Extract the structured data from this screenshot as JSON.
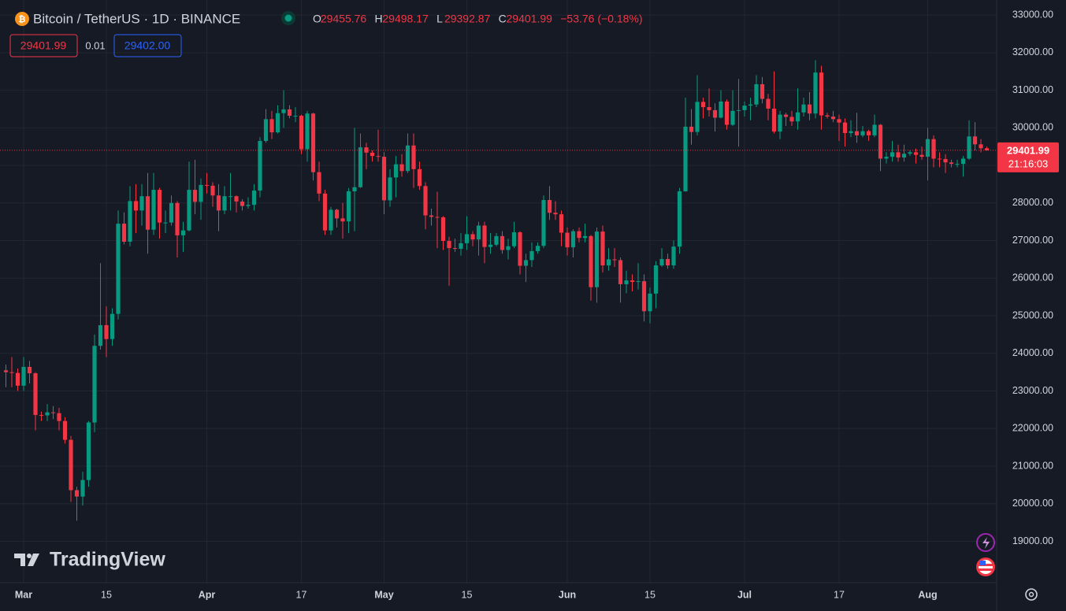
{
  "chart_data": {
    "type": "candlestick",
    "title": "Bitcoin / TetherUS · 1D · BINANCE",
    "ohlc_labels": {
      "open": "O",
      "high": "H",
      "low": "L",
      "close": "C"
    },
    "change": "−53.76 (−0.18%)",
    "bid_ask": {
      "spread": "0.01",
      "ask": "29402.00"
    },
    "countdown": "21:16:03",
    "brand": "TradingView",
    "up_color": "#089981",
    "down_color": "#f23645",
    "ylim": [
      17900,
      33400
    ],
    "yticks": [
      {
        "value": 19000,
        "label": "19000.00"
      },
      {
        "value": 20000,
        "label": "20000.00"
      },
      {
        "value": 21000,
        "label": "21000.00"
      },
      {
        "value": 22000,
        "label": "22000.00"
      },
      {
        "value": 23000,
        "label": "23000.00"
      },
      {
        "value": 24000,
        "label": "24000.00"
      },
      {
        "value": 25000,
        "label": "25000.00"
      },
      {
        "value": 26000,
        "label": "26000.00"
      },
      {
        "value": 27000,
        "label": "27000.00"
      },
      {
        "value": 28000,
        "label": "28000.00"
      },
      {
        "value": 29000,
        "label": "29000.00"
      },
      {
        "value": 30000,
        "label": "30000.00"
      },
      {
        "value": 31000,
        "label": "31000.00"
      },
      {
        "value": 32000,
        "label": "32000.00"
      },
      {
        "value": 33000,
        "label": "33000.00"
      }
    ],
    "categories": [
      null,
      null,
      null,
      "Mar",
      null,
      null,
      null,
      null,
      null,
      null,
      null,
      null,
      null,
      null,
      null,
      null,
      null,
      "15",
      null,
      null,
      null,
      null,
      null,
      null,
      null,
      null,
      null,
      null,
      null,
      null,
      null,
      null,
      null,
      null,
      "Apr",
      null,
      null,
      null,
      null,
      null,
      null,
      null,
      null,
      null,
      null,
      null,
      null,
      null,
      null,
      null,
      "17",
      null,
      null,
      null,
      null,
      null,
      null,
      null,
      null,
      null,
      null,
      null,
      null,
      null,
      "May",
      null,
      null,
      null,
      null,
      null,
      null,
      null,
      null,
      null,
      null,
      null,
      null,
      null,
      "15",
      null,
      null,
      null,
      null,
      null,
      null,
      null,
      null,
      null,
      null,
      null,
      null,
      null,
      null,
      null,
      null,
      "Jun",
      null,
      null,
      null,
      null,
      null,
      null,
      null,
      null,
      null,
      null,
      null,
      null,
      null,
      "15",
      null,
      null,
      null,
      null,
      null,
      null,
      null,
      null,
      null,
      null,
      null,
      null,
      null,
      null,
      null,
      "Jul",
      null,
      null,
      null,
      null,
      null,
      null,
      null,
      null,
      null,
      null,
      null,
      null,
      null,
      null,
      null,
      "17",
      null,
      null,
      null,
      null,
      null,
      null,
      null,
      null,
      null,
      null,
      null,
      null,
      null,
      null,
      "Aug",
      null,
      null,
      null,
      null,
      null,
      null,
      null,
      null,
      null,
      null
    ],
    "open": [
      23550,
      23500,
      23480,
      23140,
      23640,
      23470,
      22360,
      22350,
      22430,
      22410,
      22200,
      21700,
      20360,
      20190,
      20630,
      22160,
      24200,
      24750,
      24380,
      25050,
      27450,
      26970,
      28050,
      27800,
      28180,
      27290,
      28350,
      27480,
      27480,
      28000,
      27140,
      27270,
      28350,
      28030,
      28480,
      28460,
      28200,
      27800,
      28180,
      28180,
      28040,
      27920,
      27950,
      28330,
      29650,
      30230,
      29880,
      30390,
      30490,
      30320,
      30320,
      29430,
      30380,
      28820,
      28250,
      27270,
      27820,
      27590,
      27510,
      28310,
      28420,
      29480,
      29340,
      29250,
      29230,
      28070,
      28680,
      29030,
      28850,
      29530,
      28900,
      28450,
      27670,
      27630,
      27620,
      26990,
      26800,
      26780,
      26930,
      27170,
      27030,
      27400,
      26830,
      26890,
      27120,
      26750,
      26850,
      27220,
      26330,
      26480,
      26720,
      26860,
      28080,
      27740,
      27700,
      27210,
      26820,
      27250,
      27070,
      27120,
      25760,
      27240,
      26340,
      26500,
      26480,
      25840,
      25940,
      25900,
      25920,
      25120,
      25590,
      26340,
      26510,
      26340,
      26840,
      28310,
      30030,
      29890,
      30690,
      30550,
      30470,
      30270,
      30700,
      30080,
      30450,
      30470,
      30590,
      30620,
      31160,
      30770,
      30510,
      29900,
      30350,
      30290,
      30170,
      30410,
      30620,
      30380,
      31470,
      30330,
      30300,
      30230,
      30140,
      29860,
      29910,
      29800,
      29910,
      29800,
      30080,
      29180,
      29230,
      29350,
      29210,
      29310,
      29350,
      29280,
      29230,
      29700,
      29180,
      29170,
      29080,
      29040,
      29040,
      29180,
      29770,
      29560,
      29455.76
    ],
    "close": [
      23500,
      23480,
      23140,
      23640,
      23470,
      22360,
      22350,
      22430,
      22410,
      22200,
      21700,
      20360,
      20190,
      20630,
      22160,
      24200,
      24750,
      24380,
      25050,
      27450,
      26970,
      28050,
      27800,
      28180,
      27290,
      28350,
      27480,
      27480,
      28000,
      27140,
      27270,
      28350,
      28030,
      28480,
      28460,
      28200,
      27800,
      28180,
      28180,
      28040,
      27920,
      27950,
      28330,
      29650,
      30230,
      29880,
      30390,
      30490,
      30320,
      30320,
      29430,
      30380,
      28820,
      28250,
      27270,
      27820,
      27590,
      27510,
      28310,
      28420,
      29480,
      29340,
      29250,
      29230,
      28070,
      28680,
      29030,
      28850,
      29530,
      28900,
      28450,
      27670,
      27630,
      27620,
      26990,
      26800,
      26780,
      26930,
      27170,
      27030,
      27400,
      26830,
      26890,
      27120,
      26750,
      26850,
      27220,
      26330,
      26480,
      26720,
      26860,
      28080,
      27740,
      27700,
      27210,
      26820,
      27250,
      27070,
      27120,
      25760,
      27240,
      26340,
      26500,
      26480,
      25840,
      25940,
      25900,
      25920,
      25120,
      25590,
      26340,
      26510,
      26340,
      26840,
      28310,
      30030,
      29890,
      30690,
      30550,
      30470,
      30270,
      30700,
      30080,
      30450,
      30470,
      30590,
      30620,
      31160,
      30770,
      30510,
      29900,
      30350,
      30290,
      30170,
      30410,
      30620,
      30380,
      31470,
      30330,
      30300,
      30230,
      30140,
      29860,
      29910,
      29800,
      29910,
      29800,
      30080,
      29180,
      29230,
      29350,
      29210,
      29310,
      29350,
      29280,
      29230,
      29700,
      29180,
      29170,
      29080,
      29040,
      29040,
      29180,
      29770,
      29560,
      29455.76,
      29401.99
    ],
    "high": [
      23700,
      23900,
      23600,
      23900,
      23800,
      23500,
      22450,
      22650,
      22600,
      22550,
      22300,
      21800,
      20450,
      20850,
      22200,
      24500,
      26400,
      25250,
      25200,
      27800,
      27750,
      28450,
      28500,
      28500,
      28800,
      28800,
      28400,
      27800,
      28200,
      28050,
      27500,
      29100,
      29150,
      28650,
      28800,
      28550,
      28500,
      28450,
      28800,
      28200,
      28100,
      28150,
      28500,
      29750,
      30500,
      30450,
      30600,
      31000,
      30600,
      30550,
      30350,
      30450,
      30400,
      29100,
      28350,
      27900,
      27850,
      28000,
      28400,
      30000,
      29850,
      29600,
      29400,
      29950,
      29350,
      28900,
      29250,
      29300,
      29850,
      29850,
      29100,
      28550,
      27850,
      28300,
      27650,
      27100,
      27050,
      27200,
      27650,
      27250,
      27500,
      27500,
      27200,
      27200,
      27250,
      27050,
      27500,
      27250,
      26650,
      26950,
      26950,
      28200,
      28450,
      28050,
      27800,
      27350,
      27300,
      27350,
      27450,
      27150,
      27350,
      27400,
      26800,
      26800,
      26550,
      26200,
      26100,
      26400,
      26100,
      25750,
      26450,
      26800,
      26650,
      27000,
      28400,
      30800,
      30500,
      31400,
      30800,
      31050,
      30650,
      31000,
      30750,
      31000,
      31300,
      30700,
      30800,
      31400,
      31350,
      30900,
      31500,
      30450,
      30400,
      30450,
      31050,
      30800,
      30950,
      31800,
      31650,
      30400,
      30450,
      30350,
      30250,
      30200,
      30400,
      30050,
      29950,
      30350,
      30100,
      29350,
      29650,
      29550,
      29550,
      29400,
      29450,
      29500,
      30000,
      29800,
      29350,
      29300,
      29150,
      29150,
      29250,
      30200,
      30150,
      29700,
      29498.17
    ],
    "low": [
      23100,
      23100,
      23000,
      23000,
      23200,
      21950,
      22200,
      22200,
      22250,
      21950,
      21600,
      20050,
      19550,
      19950,
      20450,
      21900,
      24100,
      23900,
      24200,
      24900,
      26900,
      26850,
      27200,
      27400,
      26650,
      27150,
      27050,
      27200,
      27400,
      26550,
      26700,
      27250,
      27700,
      27550,
      28250,
      27900,
      27250,
      27700,
      27800,
      27750,
      27800,
      27850,
      27800,
      28150,
      29600,
      29700,
      29850,
      30000,
      30250,
      30150,
      29300,
      29100,
      28600,
      28050,
      27150,
      27150,
      27350,
      27050,
      27200,
      27250,
      28400,
      28900,
      29100,
      29100,
      27700,
      27900,
      28150,
      28700,
      28800,
      28400,
      28350,
      27300,
      27400,
      26800,
      26750,
      25800,
      26700,
      26600,
      26750,
      26850,
      26600,
      26400,
      26650,
      26850,
      26650,
      26500,
      26800,
      26100,
      25900,
      26300,
      26650,
      26800,
      27550,
      27550,
      26850,
      26600,
      26550,
      26950,
      26950,
      25400,
      25350,
      26150,
      26200,
      26300,
      25350,
      25600,
      25650,
      25700,
      24850,
      24800,
      25200,
      26300,
      26250,
      26250,
      26650,
      28300,
      29550,
      29800,
      30250,
      30300,
      29900,
      30250,
      29950,
      30050,
      29500,
      30300,
      30200,
      30550,
      30650,
      30200,
      29850,
      29700,
      30050,
      30050,
      29950,
      30300,
      30200,
      30250,
      29950,
      30250,
      30150,
      29650,
      29500,
      29750,
      29600,
      29750,
      29650,
      29750,
      28850,
      29050,
      29100,
      29100,
      29100,
      29250,
      29050,
      29150,
      28600,
      28950,
      28950,
      28800,
      28950,
      28950,
      28700,
      29150,
      29400,
      29350,
      29392.87
    ]
  }
}
